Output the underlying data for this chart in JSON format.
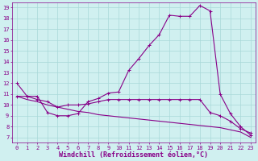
{
  "xlabel": "Windchill (Refroidissement éolien,°C)",
  "bg_color": "#d0f0f0",
  "line_color": "#880088",
  "grid_color": "#a8d8d8",
  "xlim": [
    -0.5,
    23.5
  ],
  "ylim": [
    6.5,
    19.5
  ],
  "yticks": [
    7,
    8,
    9,
    10,
    11,
    12,
    13,
    14,
    15,
    16,
    17,
    18,
    19
  ],
  "xticks": [
    0,
    1,
    2,
    3,
    4,
    5,
    6,
    7,
    8,
    9,
    10,
    11,
    12,
    13,
    14,
    15,
    16,
    17,
    18,
    19,
    20,
    21,
    22,
    23
  ],
  "line1_x": [
    0,
    1,
    2,
    3,
    4,
    5,
    6,
    7,
    8,
    9,
    10,
    11,
    12,
    13,
    14,
    15,
    16,
    17,
    18,
    19,
    20,
    21,
    22,
    23
  ],
  "line1_y": [
    12.0,
    10.8,
    10.8,
    9.3,
    9.0,
    9.0,
    9.2,
    10.3,
    10.6,
    11.1,
    11.2,
    13.2,
    14.3,
    15.5,
    16.5,
    18.3,
    18.2,
    18.2,
    19.2,
    18.7,
    11.0,
    9.2,
    8.0,
    7.2
  ],
  "line2_x": [
    0,
    1,
    2,
    3,
    4,
    5,
    6,
    7,
    8,
    9,
    10,
    11,
    12,
    13,
    14,
    15,
    16,
    17,
    18,
    19,
    20,
    21,
    22,
    23
  ],
  "line2_y": [
    10.8,
    10.8,
    10.5,
    10.3,
    9.8,
    10.0,
    10.0,
    10.1,
    10.3,
    10.5,
    10.5,
    10.5,
    10.5,
    10.5,
    10.5,
    10.5,
    10.5,
    10.5,
    10.5,
    9.3,
    9.0,
    8.5,
    7.8,
    7.4
  ],
  "line3_x": [
    0,
    1,
    2,
    3,
    4,
    5,
    6,
    7,
    8,
    9,
    10,
    11,
    12,
    13,
    14,
    15,
    16,
    17,
    18,
    19,
    20,
    21,
    22,
    23
  ],
  "line3_y": [
    10.8,
    10.5,
    10.3,
    10.0,
    9.8,
    9.6,
    9.4,
    9.3,
    9.1,
    9.0,
    8.9,
    8.8,
    8.7,
    8.6,
    8.5,
    8.4,
    8.3,
    8.2,
    8.1,
    8.0,
    7.9,
    7.7,
    7.5,
    7.0
  ],
  "marker": "+",
  "markersize": 3,
  "linewidth": 0.8,
  "font_color": "#880088",
  "tick_fontsize": 5.0,
  "label_fontsize": 6.0
}
